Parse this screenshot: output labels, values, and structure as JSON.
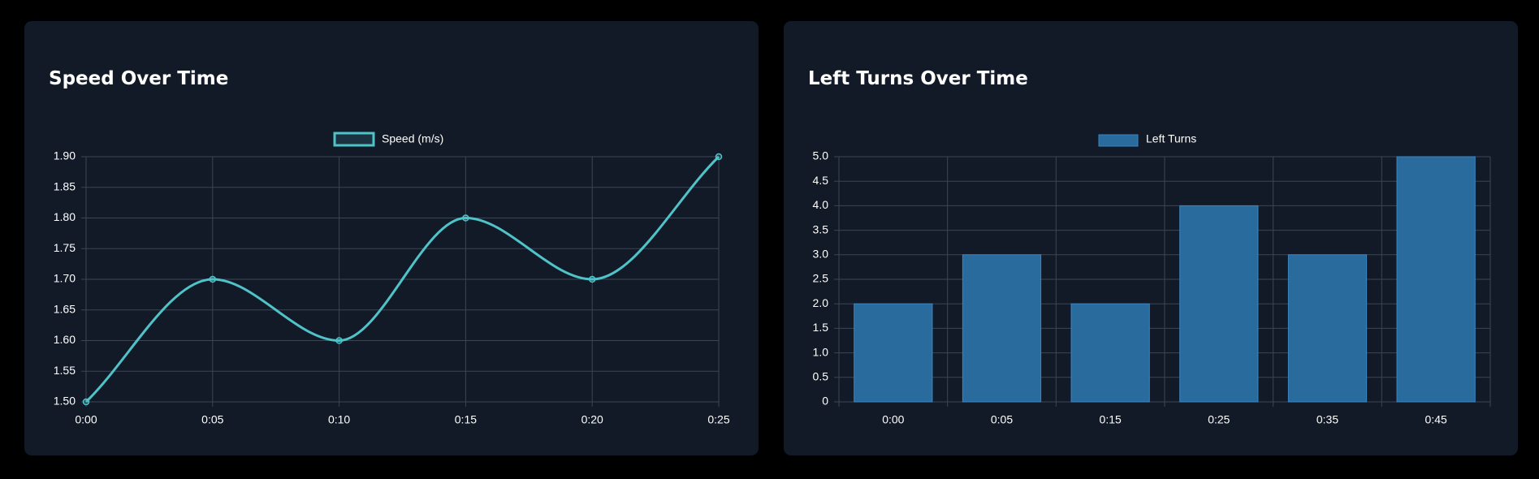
{
  "theme": {
    "line_color": "#4fc3c8",
    "bar_fill": "#2a6b9d",
    "bar_border": "#3b86c2",
    "grid_color": "#3a4556",
    "text_color": "#ffffff"
  },
  "speed_panel": {
    "title": "Speed Over Time"
  },
  "turns_panel": {
    "title": "Left Turns Over Time"
  },
  "chart_data": [
    {
      "type": "line",
      "title": "",
      "categories": [
        "0:00",
        "0:05",
        "0:10",
        "0:15",
        "0:20",
        "0:25"
      ],
      "series": [
        {
          "name": "Speed (m/s)",
          "values": [
            1.5,
            1.7,
            1.6,
            1.8,
            1.7,
            1.9
          ]
        }
      ],
      "ylim": [
        1.5,
        1.9
      ],
      "yticks": [
        "1.50",
        "1.55",
        "1.60",
        "1.65",
        "1.70",
        "1.75",
        "1.80",
        "1.85",
        "1.90"
      ],
      "xlabel": "",
      "ylabel": "",
      "grid": true,
      "legend": "top-center"
    },
    {
      "type": "bar",
      "title": "",
      "categories": [
        "0:00",
        "0:05",
        "0:15",
        "0:25",
        "0:35",
        "0:45"
      ],
      "series": [
        {
          "name": "Left Turns",
          "values": [
            2,
            3,
            2,
            4,
            3,
            5
          ]
        }
      ],
      "ylim": [
        0,
        5
      ],
      "yticks": [
        "0",
        "0.5",
        "1.0",
        "1.5",
        "2.0",
        "2.5",
        "3.0",
        "3.5",
        "4.0",
        "4.5",
        "5.0"
      ],
      "xlabel": "",
      "ylabel": "",
      "grid": true,
      "legend": "top-center"
    }
  ]
}
